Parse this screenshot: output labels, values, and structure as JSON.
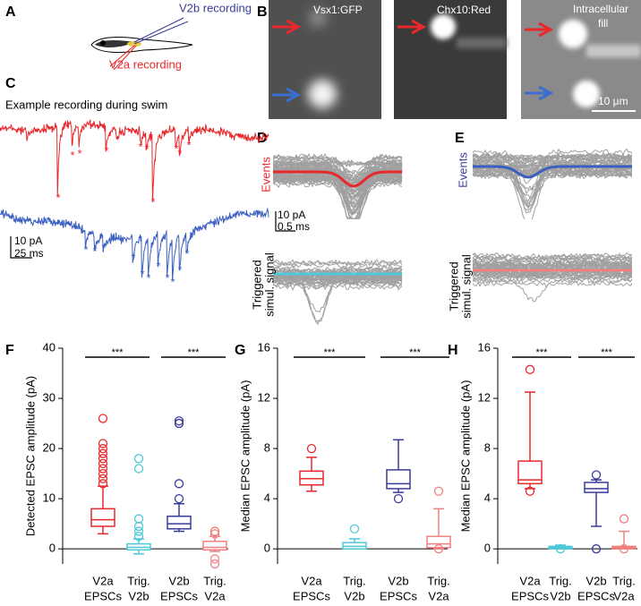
{
  "panels": {
    "A": {
      "label": "A",
      "v2b": "V2b recording",
      "v2a": "V2a recording"
    },
    "B": {
      "label": "B",
      "images": [
        "Vsx1:GFP",
        "Chx10:Red",
        [
          "Intracellular",
          "fill"
        ]
      ],
      "scale": "10 μm"
    },
    "C": {
      "label": "C",
      "title": "Example recording during swim",
      "marker": "*",
      "scale_y": "10 pA",
      "scale_x": "25 ms"
    },
    "D": {
      "label": "D",
      "events": "Events",
      "triggered": [
        "Triggered",
        "simul. signal"
      ],
      "scale_y": "10 pA",
      "scale_x": "0.5 ms"
    },
    "E": {
      "label": "E",
      "events": "Events",
      "triggered": [
        "Triggered",
        "simul. signal"
      ]
    },
    "F": {
      "label": "F"
    },
    "G": {
      "label": "G"
    },
    "H": {
      "label": "H"
    }
  },
  "chart_data": [
    {
      "type": "box",
      "ylabel": "Detected EPSC amplitude (pA)",
      "ylim": [
        -3,
        40
      ],
      "yticks": [
        0,
        10,
        20,
        30,
        40
      ],
      "categories": [
        [
          "V2a",
          "EPSCs"
        ],
        [
          "Trig.",
          "V2b"
        ],
        [
          "V2b",
          "EPSCs"
        ],
        [
          "Trig.",
          "V2a"
        ]
      ],
      "significance": [
        "***",
        "***"
      ],
      "boxes": [
        {
          "color": "#e8282b",
          "low": 3,
          "q1": 4.5,
          "median": 5.8,
          "q3": 8,
          "high": 12.5,
          "outliers": [
            13,
            14,
            15,
            16,
            17,
            18,
            19,
            20,
            21,
            26
          ]
        },
        {
          "color": "#4fc8d8",
          "low": -1,
          "q1": -0.2,
          "median": 0.3,
          "q3": 1,
          "high": 2,
          "outliers": [
            2.5,
            3.5,
            4.5,
            6,
            16,
            18
          ]
        },
        {
          "color": "#3a3c98",
          "low": 3.5,
          "q1": 4,
          "median": 5,
          "q3": 6.5,
          "high": 9,
          "outliers": [
            10,
            13,
            25,
            25.5
          ]
        },
        {
          "color": "#f08080",
          "low": -0.5,
          "q1": -0.2,
          "median": 0.3,
          "q3": 1.5,
          "high": 2.5,
          "outliers": [
            -2,
            -3,
            3,
            3.5
          ]
        }
      ]
    },
    {
      "type": "box",
      "ylabel": "Median EPSC amplitude (pA)",
      "ylim": [
        -1.2,
        16
      ],
      "yticks": [
        0,
        4,
        8,
        12,
        16
      ],
      "categories": [
        [
          "V2a",
          "EPSCs"
        ],
        [
          "Trig.",
          "V2b"
        ],
        [
          "V2b",
          "EPSCs"
        ],
        [
          "Trig.",
          "V2a"
        ]
      ],
      "significance": [
        "***",
        "***"
      ],
      "boxes": [
        {
          "color": "#e8282b",
          "low": 4.6,
          "q1": 5.1,
          "median": 5.6,
          "q3": 6.2,
          "high": 7.3,
          "outliers": [
            8
          ]
        },
        {
          "color": "#4fc8d8",
          "low": 0,
          "q1": 0,
          "median": 0.2,
          "q3": 0.5,
          "high": 0.8,
          "outliers": [
            1.6
          ]
        },
        {
          "color": "#3a3c98",
          "low": 4.5,
          "q1": 4.8,
          "median": 5.2,
          "q3": 6.3,
          "high": 8.7,
          "outliers": [
            4
          ]
        },
        {
          "color": "#f08080",
          "low": 0,
          "q1": 0.1,
          "median": 0.4,
          "q3": 1,
          "high": 3.2,
          "outliers": [
            4.6,
            0
          ]
        }
      ]
    },
    {
      "type": "box",
      "ylabel": "Median EPSC amplitude (pA)",
      "ylim": [
        -1.2,
        16
      ],
      "yticks": [
        0,
        4,
        8,
        12,
        16
      ],
      "categories": [
        [
          "V2a",
          "EPSCs"
        ],
        [
          "Trig.",
          "V2b"
        ],
        [
          "V2b",
          "EPSCs"
        ],
        [
          "Trig.",
          "V2a"
        ]
      ],
      "significance": [
        "***",
        "***"
      ],
      "boxes": [
        {
          "color": "#e8282b",
          "low": 4.8,
          "q1": 5.2,
          "median": 5.5,
          "q3": 7,
          "high": 12.5,
          "outliers": [
            14.3,
            4.6
          ]
        },
        {
          "color": "#4fc8d8",
          "low": 0,
          "q1": 0,
          "median": 0.1,
          "q3": 0.2,
          "high": 0.3,
          "outliers": [
            0
          ]
        },
        {
          "color": "#3a3c98",
          "low": 1.8,
          "q1": 4.5,
          "median": 4.8,
          "q3": 5.3,
          "high": 5.5,
          "outliers": [
            5.9,
            0
          ]
        },
        {
          "color": "#f08080",
          "low": 0,
          "q1": 0,
          "median": 0.1,
          "q3": 0.2,
          "high": 1.4,
          "outliers": [
            2.4,
            0
          ]
        }
      ]
    }
  ]
}
